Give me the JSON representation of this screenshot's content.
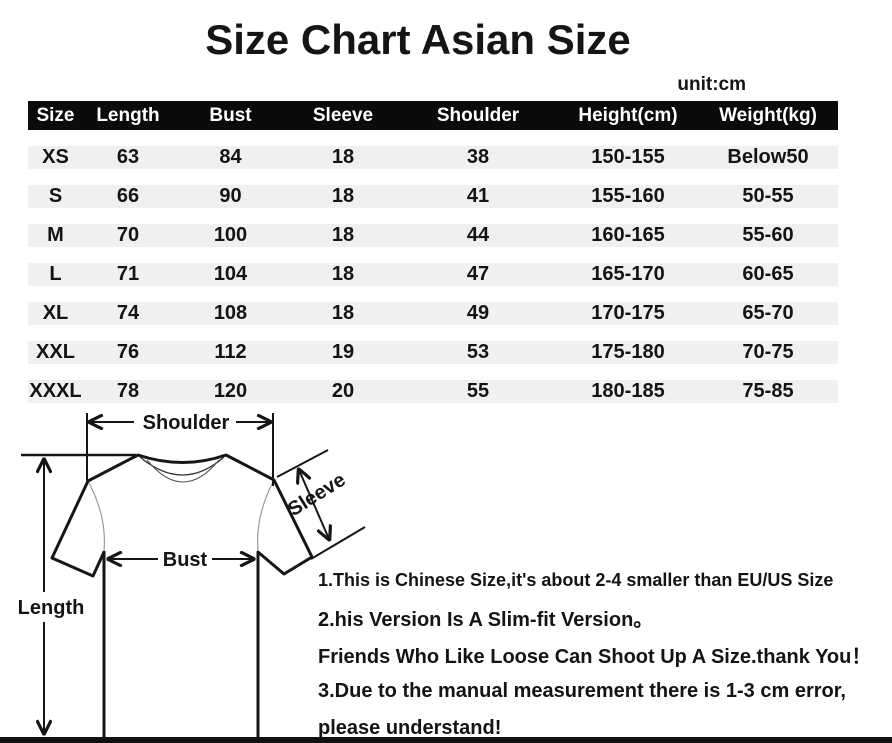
{
  "title": "Size Chart Asian Size",
  "unit_label": "unit:cm",
  "table": {
    "columns": [
      "Size",
      "Length",
      "Bust",
      "Sleeve",
      "Shoulder",
      "Height(cm)",
      "Weight(kg)"
    ],
    "rows": [
      [
        "XS",
        "63",
        "84",
        "18",
        "38",
        "150-155",
        "Below50"
      ],
      [
        "S",
        "66",
        "90",
        "18",
        "41",
        "155-160",
        "50-55"
      ],
      [
        "M",
        "70",
        "100",
        "18",
        "44",
        "160-165",
        "55-60"
      ],
      [
        "L",
        "71",
        "104",
        "18",
        "47",
        "165-170",
        "60-65"
      ],
      [
        "XL",
        "74",
        "108",
        "18",
        "49",
        "170-175",
        "65-70"
      ],
      [
        "XXL",
        "76",
        "112",
        "19",
        "53",
        "175-180",
        "70-75"
      ],
      [
        "XXXL",
        "78",
        "120",
        "20",
        "55",
        "180-185",
        "75-85"
      ]
    ]
  },
  "diagram": {
    "labels": {
      "shoulder": "Shoulder",
      "sleeve": "Sleeve",
      "bust": "Bust",
      "length": "Length"
    }
  },
  "notes": [
    "1.This is Chinese Size,it's about 2-4 smaller than EU/US Size",
    "2.his Version Is A Slim-fit Version。",
    "Friends Who Like Loose Can Shoot Up A Size.thank You！",
    "3.Due to the manual measurement there is 1-3 cm error,",
    "please understand!"
  ],
  "colors": {
    "header_bg": "#0b0b0b",
    "header_text": "#ffffff",
    "row_bg": "#f0f0f0",
    "text": "#141414",
    "line": "#161616"
  }
}
